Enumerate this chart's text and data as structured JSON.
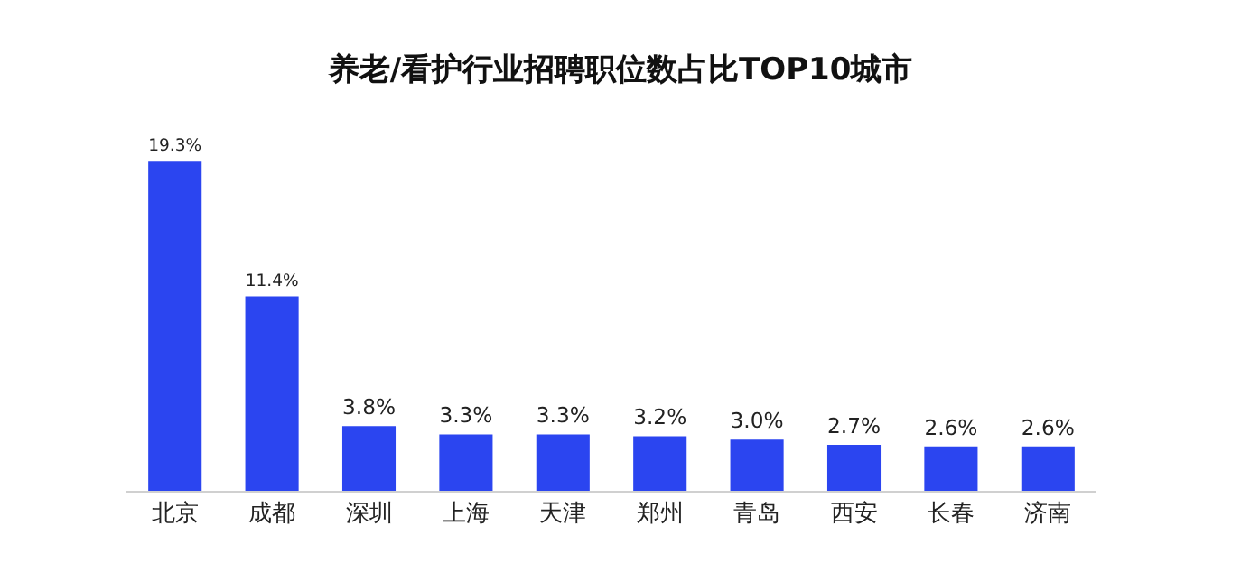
{
  "chart_data": {
    "type": "bar",
    "title": "养老/看护行业招聘职位数占比TOP10城市",
    "categories": [
      "北京",
      "成都",
      "深圳",
      "上海",
      "天津",
      "郑州",
      "青岛",
      "西安",
      "长春",
      "济南"
    ],
    "values": [
      19.3,
      11.4,
      3.8,
      3.3,
      3.3,
      3.2,
      3.0,
      2.7,
      2.6,
      2.6
    ],
    "value_labels": [
      "19.3%",
      "11.4%",
      "3.8%",
      "3.3%",
      "3.3%",
      "3.2%",
      "3.0%",
      "2.7%",
      "2.6%",
      "2.6%"
    ],
    "color": "#2b45f0",
    "grid": false,
    "legend": false
  }
}
